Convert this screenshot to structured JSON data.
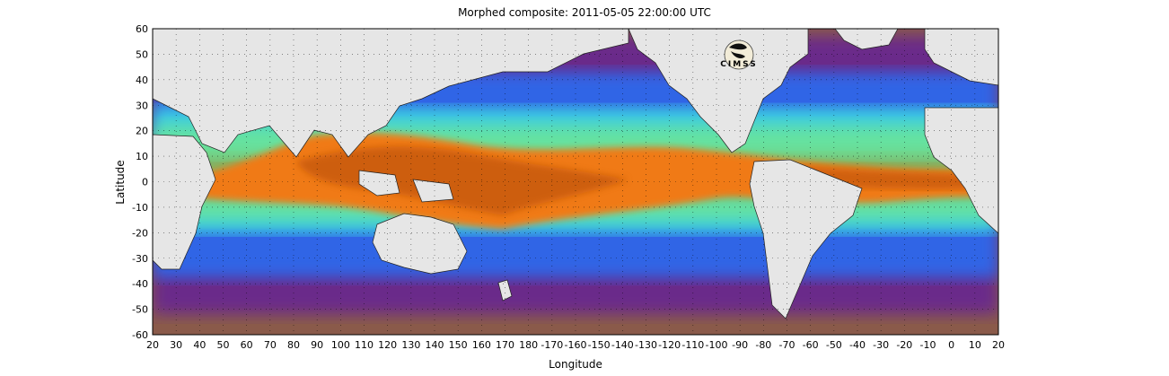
{
  "map": {
    "title": "Morphed composite: 2011-05-05 22:00:00 UTC",
    "xlabel": "Longitude",
    "ylabel": "Latitude",
    "x_ticks": [
      "20",
      "30",
      "40",
      "50",
      "60",
      "70",
      "80",
      "90",
      "100",
      "110",
      "120",
      "130",
      "140",
      "150",
      "160",
      "170",
      "180",
      "-170",
      "-160",
      "-150",
      "-140",
      "-130",
      "-120",
      "-110",
      "-100",
      "-90",
      "-80",
      "-70",
      "-60",
      "-50",
      "-40",
      "-30",
      "-20",
      "-10",
      "0",
      "10",
      "20"
    ],
    "y_ticks": [
      "60",
      "50",
      "40",
      "30",
      "20",
      "10",
      "0",
      "-10",
      "-20",
      "-30",
      "-40",
      "-50",
      "-60"
    ],
    "logo_text": "CIMSS",
    "grid": "dotted",
    "colors": {
      "land": "#e6e6e6",
      "dry": "#8a5a4a",
      "purple": "#6a2c8a",
      "blue": "#2b6cf0",
      "cyan": "#3fe0e0",
      "green": "#7ef07a",
      "orange": "#f07a18",
      "deep_orange": "#c85a08"
    }
  }
}
